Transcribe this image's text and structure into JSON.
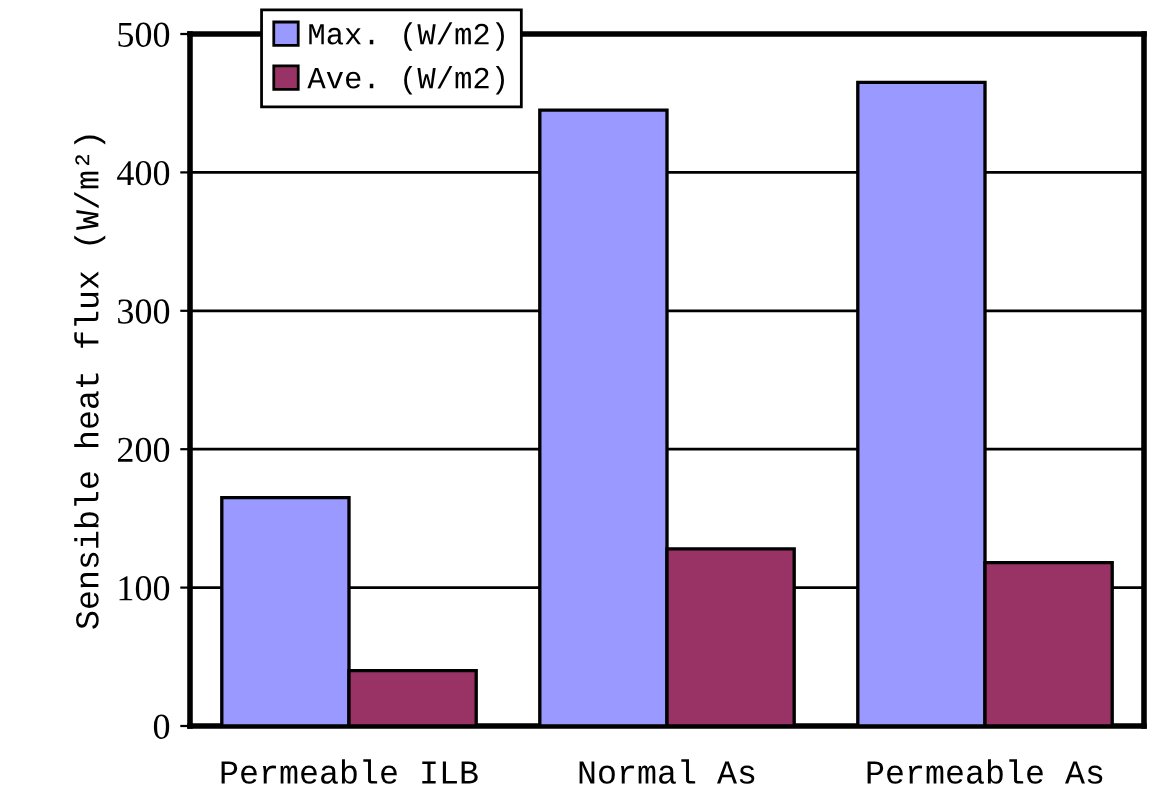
{
  "chart_data": {
    "type": "bar",
    "categories": [
      "Permeable ILB",
      "Normal As",
      "Permeable As"
    ],
    "series": [
      {
        "name": "Max. (W/m2)",
        "color": "#9999ff",
        "values": [
          165,
          445,
          465
        ]
      },
      {
        "name": "Ave. (W/m2)",
        "color": "#993366",
        "values": [
          40,
          128,
          118
        ]
      }
    ],
    "ylabel": "Sensible heat flux (W/m²)",
    "ylim": [
      0,
      500
    ],
    "yticks": [
      0,
      100,
      200,
      300,
      400,
      500
    ],
    "grid": "y",
    "legend": "top left"
  }
}
